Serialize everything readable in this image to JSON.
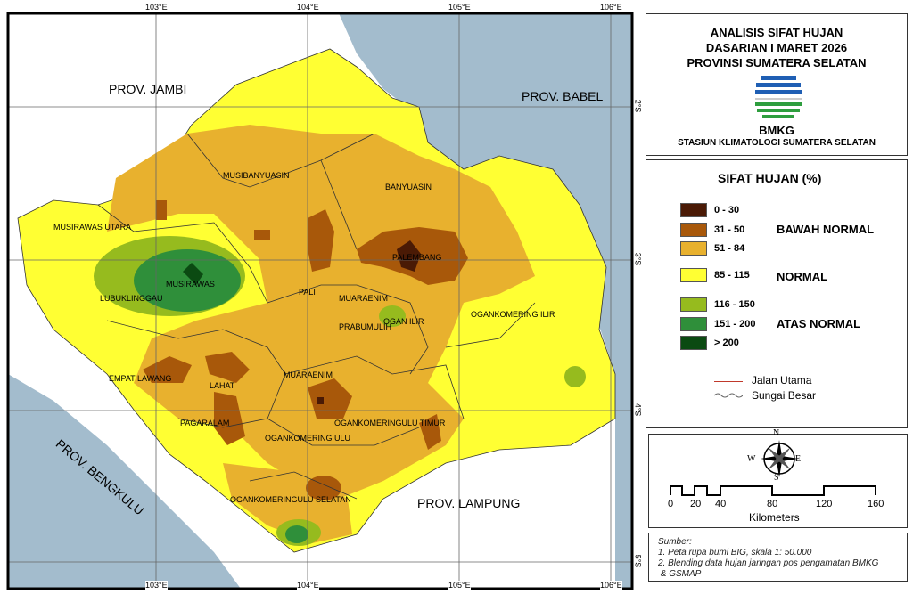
{
  "header": {
    "title_lines": [
      "ANALISIS SIFAT HUJAN",
      "DASARIAN I MARET 2026",
      "PROVINSI SUMATERA SELATAN"
    ],
    "logo_text": "BMKG",
    "station": "STASIUN KLIMATOLOGI SUMATERA SELATAN"
  },
  "legend": {
    "title": "SIFAT HUJAN (%)",
    "classes": [
      {
        "label": "0 - 30",
        "color": "#4a1a05"
      },
      {
        "label": "31 - 50",
        "color": "#a8580a"
      },
      {
        "label": "51 - 84",
        "color": "#e8b12e"
      },
      {
        "label": "85 - 115",
        "color": "#ffff33"
      },
      {
        "label": "116 - 150",
        "color": "#96bb1e"
      },
      {
        "label": "151 - 200",
        "color": "#2f8f3a"
      },
      {
        "label": "> 200",
        "color": "#0b4a12"
      }
    ],
    "categories": [
      "BAWAH NORMAL",
      "NORMAL",
      "ATAS NORMAL"
    ],
    "lines": [
      {
        "label": "Jalan Utama",
        "color": "#c0392b"
      },
      {
        "label": "Sungai Besar",
        "color": "#666666"
      }
    ]
  },
  "compass": {
    "n": "N",
    "s": "S",
    "e": "E",
    "w": "W"
  },
  "scale": {
    "ticks": [
      "0",
      "20",
      "40",
      "80",
      "120",
      "160"
    ],
    "unit": "Kilometers"
  },
  "source": {
    "heading": "Sumber:",
    "items": [
      "1. Peta rupa bumi BIG, skala 1: 50.000",
      "2. Blending data hujan jaringan pos pengamatan BMKG",
      " & GSMAP"
    ]
  },
  "map": {
    "sea_color": "#a3bccd",
    "lon_ticks": [
      "103°E",
      "104°E",
      "105°E",
      "106°E"
    ],
    "lat_ticks": [
      "2°S",
      "3°S",
      "4°S",
      "5°S"
    ],
    "provinces": [
      "PROV. JAMBI",
      "PROV. BABEL",
      "PROV. BENGKULU",
      "PROV. LAMPUNG"
    ],
    "regions": [
      "MUSIBANYUASIN",
      "BANYUASIN",
      "MUSIRAWAS UTARA",
      "MUSIRAWAS",
      "LUBUKLINGGAU",
      "PALEMBANG",
      "PALI",
      "MUARAENIM",
      "OGAN ILIR",
      "PRABUMULIH",
      "OGANKOMERING ILIR",
      "EMPAT LAWANG",
      "LAHAT",
      "MUARAENIM",
      "PAGARALAM",
      "OGANKOMERINGULU TIMUR",
      "OGANKOMERING ULU",
      "OGANKOMERINGULU SELATAN"
    ]
  }
}
